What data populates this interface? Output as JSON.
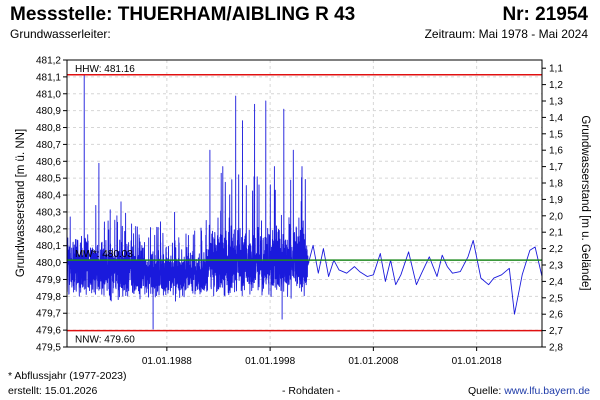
{
  "header": {
    "title": "Messstelle: THUERHAM/AIBLING R 43",
    "number": "Nr: 21954",
    "aquifer": "Grundwasserleiter:",
    "period": "Zeitraum: Mai 1978 - Mai 2024"
  },
  "footer": {
    "footnote": "* Abflussjahr (1977-2023)",
    "created": "erstellt:  15.01.2026",
    "rawdata": "- Rohdaten -",
    "source_label": "Quelle: ",
    "source_url": "www.lfu.bayern.de"
  },
  "colors": {
    "series": "#1a1adc",
    "extreme_lines": "#e01010",
    "mean_line": "#1f8a1f",
    "grid": "#d6d6d6"
  },
  "chart_data": {
    "type": "line",
    "title": "Messstelle: THUERHAM/AIBLING R 43",
    "ylabel": "Grundwasserstand [m ü. NN]",
    "y2label": "Grundwasserstand [m u. Gelände]",
    "ylim": [
      479.5,
      481.25
    ],
    "y2lim": [
      2.8,
      1.05
    ],
    "xlim": [
      "1978-05-01",
      "2024-05-01"
    ],
    "yticks": [
      "481,2",
      "481,1",
      "481,0",
      "480,9",
      "480,8",
      "480,7",
      "480,6",
      "480,5",
      "480,4",
      "480,3",
      "480,2",
      "480,1",
      "480,0",
      "479,9",
      "479,8",
      "479,7",
      "479,6",
      "479,5"
    ],
    "y2ticks": [
      "1,1",
      "1,2",
      "1,3",
      "1,4",
      "1,5",
      "1,6",
      "1,7",
      "1,8",
      "1,9",
      "2,0",
      "2,1",
      "2,2",
      "2,3",
      "2,4",
      "2,5",
      "2,6",
      "2,7",
      "2,8"
    ],
    "xticks": [
      {
        "label": "01.01.1988",
        "date": "1988-01-01"
      },
      {
        "label": "01.01.1998",
        "date": "1998-01-01"
      },
      {
        "label": "01.01.2008",
        "date": "2008-01-01"
      },
      {
        "label": "01.01.2018",
        "date": "2018-01-01"
      }
    ],
    "grid": true,
    "reference_lines": [
      {
        "label": "HHW: 481.16",
        "value": 481.16,
        "kind": "max"
      },
      {
        "label": "MW*: 480.03",
        "value": 480.03,
        "kind": "mean"
      },
      {
        "label": "NNW: 479.60",
        "value": 479.6,
        "kind": "min"
      }
    ],
    "series": [
      {
        "name": "Rohdaten",
        "dense": [
          {
            "start": "1978-05-01",
            "end": "1986-01-01",
            "seed": 11,
            "base": 479.97,
            "amp": 0.13,
            "spikes": [
              [
                "1980-01-01",
                481.16
              ],
              [
                "1981-06-01",
                480.62
              ],
              [
                "1983-03-01",
                480.3
              ],
              [
                "1984-08-01",
                480.25
              ]
            ],
            "dips": [
              [
                "1979-02-01",
                479.85
              ],
              [
                "1985-05-01",
                479.86
              ]
            ]
          },
          {
            "start": "1986-01-01",
            "end": "1992-01-01",
            "seed": 23,
            "base": 479.94,
            "amp": 0.1,
            "spikes": [
              [
                "1986-06-01",
                480.08
              ],
              [
                "1990-02-01",
                480.18
              ]
            ],
            "dips": [
              [
                "1986-09-01",
                479.61
              ],
              [
                "1988-11-01",
                479.78
              ]
            ]
          },
          {
            "start": "1992-01-01",
            "end": "2001-09-01",
            "seed": 37,
            "base": 480.02,
            "amp": 0.16,
            "spikes": [
              [
                "1992-03-01",
                480.7
              ],
              [
                "1993-06-01",
                480.6
              ],
              [
                "1994-09-01",
                481.03
              ],
              [
                "1995-05-01",
                480.88
              ],
              [
                "1996-07-01",
                480.98
              ],
              [
                "1997-08-01",
                481.0
              ],
              [
                "1998-06-01",
                480.6
              ],
              [
                "1999-05-01",
                480.95
              ],
              [
                "2000-04-01",
                480.7
              ],
              [
                "2001-02-01",
                480.6
              ]
            ],
            "dips": [
              [
                "1994-01-01",
                479.82
              ],
              [
                "1999-03-01",
                479.67
              ],
              [
                "2001-07-01",
                479.88
              ]
            ]
          }
        ],
        "sparse": [
          [
            "2001-09-01",
            480.0
          ],
          [
            "2002-03-01",
            480.12
          ],
          [
            "2002-09-01",
            479.95
          ],
          [
            "2003-03-01",
            480.1
          ],
          [
            "2003-09-01",
            479.93
          ],
          [
            "2004-03-01",
            480.03
          ],
          [
            "2004-09-01",
            479.97
          ],
          [
            "2005-06-01",
            479.95
          ],
          [
            "2006-03-01",
            479.99
          ],
          [
            "2006-09-01",
            479.96
          ],
          [
            "2007-06-01",
            479.93
          ],
          [
            "2008-01-01",
            479.94
          ],
          [
            "2008-09-01",
            480.07
          ],
          [
            "2009-03-01",
            479.9
          ],
          [
            "2009-09-01",
            480.03
          ],
          [
            "2010-03-01",
            479.88
          ],
          [
            "2010-09-01",
            479.94
          ],
          [
            "2011-06-01",
            480.08
          ],
          [
            "2012-03-01",
            479.88
          ],
          [
            "2012-09-01",
            479.95
          ],
          [
            "2013-06-01",
            480.05
          ],
          [
            "2014-03-01",
            479.93
          ],
          [
            "2014-09-01",
            480.06
          ],
          [
            "2015-03-01",
            479.99
          ],
          [
            "2015-09-01",
            479.95
          ],
          [
            "2016-06-01",
            479.96
          ],
          [
            "2017-03-01",
            480.05
          ],
          [
            "2017-09-01",
            480.15
          ],
          [
            "2018-06-01",
            479.92
          ],
          [
            "2019-03-01",
            479.88
          ],
          [
            "2019-09-01",
            479.92
          ],
          [
            "2020-06-01",
            479.94
          ],
          [
            "2021-03-01",
            479.98
          ],
          [
            "2021-09-01",
            479.7
          ],
          [
            "2022-06-01",
            479.94
          ],
          [
            "2023-03-01",
            480.09
          ],
          [
            "2023-09-01",
            480.11
          ],
          [
            "2024-05-01",
            479.93
          ]
        ]
      }
    ]
  }
}
